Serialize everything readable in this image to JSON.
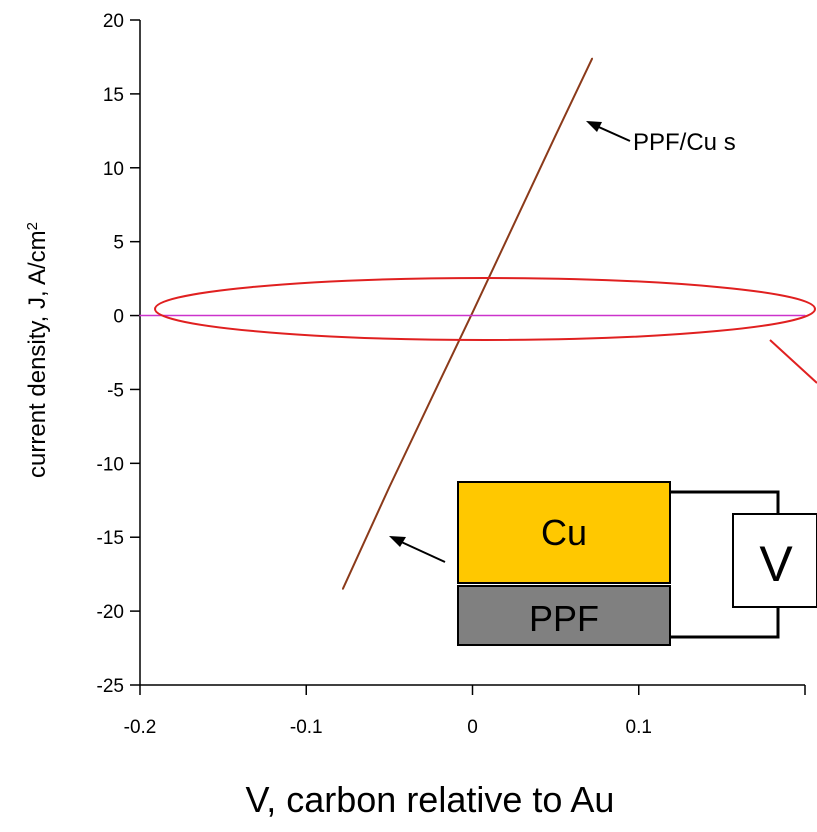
{
  "chart_data": {
    "type": "line",
    "xlabel": "V, carbon relative to Au",
    "ylabel_main": "current density, J, A/cm",
    "ylabel_sup": "2",
    "xlim": [
      -0.2,
      0.2
    ],
    "ylim": [
      -25,
      20
    ],
    "xticks": [
      -0.2,
      -0.1,
      0,
      0.1
    ],
    "xtick_labels": [
      "-0.2",
      "-0.1",
      "0",
      "0.1"
    ],
    "yticks": [
      20,
      15,
      10,
      5,
      0,
      -5,
      -10,
      -15,
      -20,
      -25
    ],
    "ytick_labels": [
      "20",
      "15",
      "10",
      "5",
      "0",
      "-5",
      "-10",
      "-15",
      "-20",
      "-25"
    ],
    "series": [
      {
        "color": "#8B3A1A",
        "x": [
          -0.078,
          -0.05,
          -0.02,
          0,
          0.02,
          0.05,
          0.072
        ],
        "y": [
          -18.5,
          -11.6,
          -4.5,
          0.2,
          5.0,
          12.2,
          17.4
        ]
      },
      {
        "color": "#CC33CC",
        "x": [
          -0.2,
          0.2
        ],
        "y": [
          0,
          0
        ]
      }
    ],
    "annotations": {
      "top_label": "PPF/Cu s",
      "inset_cu": "Cu",
      "inset_ppf": "PPF",
      "inset_v": "V"
    },
    "colors": {
      "cu": "#FFC800",
      "ppf": "#808080",
      "ellipse": "#E02020"
    }
  }
}
